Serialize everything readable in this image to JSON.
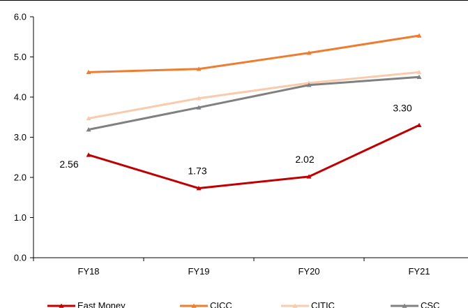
{
  "chart_data": {
    "type": "line",
    "title": "",
    "xlabel": "",
    "ylabel": "",
    "categories": [
      "FY18",
      "FY19",
      "FY20",
      "FY21"
    ],
    "ylim": [
      0,
      6
    ],
    "yticks": [
      "0.0",
      "1.0",
      "2.0",
      "3.0",
      "4.0",
      "5.0",
      "6.0"
    ],
    "grid": false,
    "legend_position": "bottom",
    "series": [
      {
        "name": "East Money",
        "values": [
          2.56,
          1.73,
          2.02,
          3.3
        ],
        "color": "#c00000",
        "labels": [
          "2.56",
          "1.73",
          "2.02",
          "3.30"
        ]
      },
      {
        "name": "CICC",
        "values": [
          4.62,
          4.7,
          5.1,
          5.53
        ],
        "color": "#ed7d31"
      },
      {
        "name": "CITIC",
        "values": [
          3.47,
          3.97,
          4.35,
          4.62
        ],
        "color": "#f8cbad"
      },
      {
        "name": "CSC",
        "values": [
          3.19,
          3.74,
          4.3,
          4.5
        ],
        "color": "#808080"
      }
    ]
  }
}
